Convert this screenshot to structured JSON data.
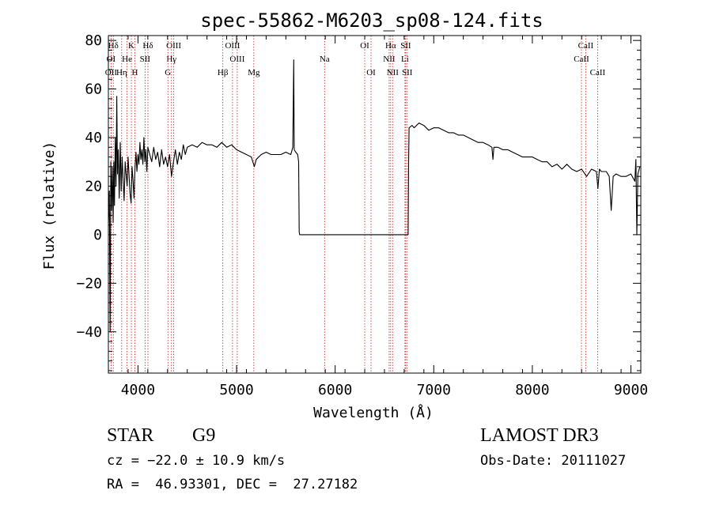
{
  "chart_data": {
    "type": "line",
    "title": "spec-55862-M6203_sp08-124.fits",
    "xlabel": "Wavelength (Å)",
    "ylabel": "Flux (relative)",
    "xlim": [
      3700,
      9100
    ],
    "ylim": [
      -57,
      82
    ],
    "x_ticks": [
      4000,
      5000,
      6000,
      7000,
      8000,
      9000
    ],
    "y_ticks": [
      -40,
      -20,
      0,
      20,
      40,
      60,
      80
    ],
    "grid": false,
    "series": [
      {
        "name": "spectrum",
        "points": [
          [
            3700,
            5
          ],
          [
            3710,
            18
          ],
          [
            3718,
            -40
          ],
          [
            3725,
            30
          ],
          [
            3732,
            10
          ],
          [
            3740,
            28
          ],
          [
            3748,
            5
          ],
          [
            3755,
            30
          ],
          [
            3762,
            12
          ],
          [
            3770,
            40
          ],
          [
            3778,
            20
          ],
          [
            3785,
            57
          ],
          [
            3792,
            25
          ],
          [
            3800,
            35
          ],
          [
            3810,
            15
          ],
          [
            3820,
            38
          ],
          [
            3830,
            18
          ],
          [
            3840,
            32
          ],
          [
            3850,
            22
          ],
          [
            3860,
            14
          ],
          [
            3870,
            30
          ],
          [
            3880,
            25
          ],
          [
            3890,
            20
          ],
          [
            3900,
            32
          ],
          [
            3910,
            24
          ],
          [
            3920,
            17
          ],
          [
            3930,
            13
          ],
          [
            3940,
            28
          ],
          [
            3950,
            22
          ],
          [
            3960,
            15
          ],
          [
            3970,
            28
          ],
          [
            3980,
            34
          ],
          [
            3990,
            26
          ],
          [
            4000,
            33
          ],
          [
            4010,
            29
          ],
          [
            4020,
            38
          ],
          [
            4030,
            31
          ],
          [
            4040,
            35
          ],
          [
            4050,
            29
          ],
          [
            4060,
            40
          ],
          [
            4070,
            30
          ],
          [
            4080,
            35
          ],
          [
            4090,
            26
          ],
          [
            4100,
            36
          ],
          [
            4120,
            33
          ],
          [
            4140,
            30
          ],
          [
            4160,
            36
          ],
          [
            4180,
            31
          ],
          [
            4200,
            34
          ],
          [
            4220,
            28
          ],
          [
            4240,
            35
          ],
          [
            4260,
            29
          ],
          [
            4280,
            32
          ],
          [
            4300,
            28
          ],
          [
            4320,
            33
          ],
          [
            4340,
            24
          ],
          [
            4360,
            30
          ],
          [
            4380,
            35
          ],
          [
            4400,
            29
          ],
          [
            4420,
            34
          ],
          [
            4440,
            31
          ],
          [
            4460,
            37
          ],
          [
            4480,
            33
          ],
          [
            4500,
            36
          ],
          [
            4550,
            37
          ],
          [
            4600,
            36
          ],
          [
            4650,
            38
          ],
          [
            4700,
            37
          ],
          [
            4750,
            37
          ],
          [
            4800,
            36
          ],
          [
            4850,
            38
          ],
          [
            4900,
            36
          ],
          [
            4950,
            37
          ],
          [
            5000,
            35
          ],
          [
            5050,
            34
          ],
          [
            5100,
            33
          ],
          [
            5150,
            32
          ],
          [
            5180,
            28
          ],
          [
            5200,
            31
          ],
          [
            5250,
            33
          ],
          [
            5300,
            34
          ],
          [
            5350,
            33
          ],
          [
            5400,
            33
          ],
          [
            5450,
            33
          ],
          [
            5500,
            34
          ],
          [
            5550,
            33
          ],
          [
            5570,
            36
          ],
          [
            5580,
            72
          ],
          [
            5585,
            35
          ],
          [
            5600,
            34
          ],
          [
            5620,
            33
          ],
          [
            5630,
            30
          ],
          [
            5635,
            1
          ],
          [
            5640,
            0
          ],
          [
            6000,
            0
          ],
          [
            6300,
            0
          ],
          [
            6500,
            0
          ],
          [
            6740,
            0
          ],
          [
            6745,
            30
          ],
          [
            6750,
            44
          ],
          [
            6780,
            45
          ],
          [
            6800,
            44
          ],
          [
            6850,
            46
          ],
          [
            6900,
            45
          ],
          [
            6950,
            43
          ],
          [
            7000,
            44
          ],
          [
            7050,
            44
          ],
          [
            7100,
            43
          ],
          [
            7150,
            42
          ],
          [
            7200,
            42
          ],
          [
            7250,
            41
          ],
          [
            7300,
            41
          ],
          [
            7350,
            40
          ],
          [
            7400,
            39
          ],
          [
            7450,
            38
          ],
          [
            7500,
            38
          ],
          [
            7550,
            37
          ],
          [
            7590,
            36
          ],
          [
            7600,
            31
          ],
          [
            7610,
            36
          ],
          [
            7650,
            36
          ],
          [
            7700,
            35
          ],
          [
            7750,
            35
          ],
          [
            7800,
            34
          ],
          [
            7850,
            33
          ],
          [
            7900,
            32
          ],
          [
            7950,
            32
          ],
          [
            8000,
            32
          ],
          [
            8050,
            31
          ],
          [
            8100,
            30
          ],
          [
            8150,
            30
          ],
          [
            8200,
            28
          ],
          [
            8250,
            29
          ],
          [
            8300,
            27
          ],
          [
            8350,
            29
          ],
          [
            8400,
            27
          ],
          [
            8450,
            26
          ],
          [
            8500,
            27
          ],
          [
            8550,
            24
          ],
          [
            8600,
            27
          ],
          [
            8650,
            26
          ],
          [
            8665,
            19
          ],
          [
            8680,
            27
          ],
          [
            8700,
            26
          ],
          [
            8750,
            26
          ],
          [
            8780,
            24
          ],
          [
            8800,
            10
          ],
          [
            8820,
            24
          ],
          [
            8850,
            25
          ],
          [
            8900,
            24
          ],
          [
            8950,
            24
          ],
          [
            9000,
            25
          ],
          [
            9040,
            22
          ],
          [
            9050,
            31
          ],
          [
            9060,
            0
          ],
          [
            9070,
            25
          ],
          [
            9090,
            28
          ]
        ]
      }
    ],
    "lines": [
      {
        "name": "Hδ",
        "x": 3750,
        "row": 1
      },
      {
        "name": "K",
        "x": 3933,
        "row": 1
      },
      {
        "name": "Hδ",
        "x": 4101,
        "row": 1
      },
      {
        "name": "OIII",
        "x": 4363,
        "row": 1
      },
      {
        "name": "OIII",
        "x": 4959,
        "row": 1
      },
      {
        "name": "OI",
        "x": 6300,
        "row": 1
      },
      {
        "name": "Hα",
        "x": 6563,
        "row": 1
      },
      {
        "name": "SII",
        "x": 6716,
        "row": 1
      },
      {
        "name": "CaII",
        "x": 8542,
        "row": 1
      },
      {
        "name": "OI",
        "x": 3727,
        "row": 2
      },
      {
        "name": "He",
        "x": 3889,
        "row": 2
      },
      {
        "name": "SII",
        "x": 4072,
        "row": 2
      },
      {
        "name": "Hγ",
        "x": 4340,
        "row": 2
      },
      {
        "name": "OIII",
        "x": 5007,
        "row": 2
      },
      {
        "name": "Na",
        "x": 5893,
        "row": 2
      },
      {
        "name": "NII",
        "x": 6548,
        "row": 2
      },
      {
        "name": "Li",
        "x": 6708,
        "row": 2
      },
      {
        "name": "CaII",
        "x": 8498,
        "row": 2
      },
      {
        "name": "OII",
        "x": 3727,
        "row": 3
      },
      {
        "name": "Hη",
        "x": 3835,
        "row": 3
      },
      {
        "name": "H",
        "x": 3969,
        "row": 3
      },
      {
        "name": "G",
        "x": 4304,
        "row": 3
      },
      {
        "name": "Hβ",
        "x": 4861,
        "row": 3
      },
      {
        "name": "Mg",
        "x": 5175,
        "row": 3
      },
      {
        "name": "OI",
        "x": 6364,
        "row": 3
      },
      {
        "name": "NII",
        "x": 6583,
        "row": 3
      },
      {
        "name": "SII",
        "x": 6731,
        "row": 3
      },
      {
        "name": "CaII",
        "x": 8662,
        "row": 3
      }
    ]
  },
  "info": {
    "class": "STAR",
    "subclass": "G9",
    "survey": "LAMOST DR3",
    "cz": "cz = −22.0 ± 10.9 km/s",
    "obs_date": "Obs-Date: 20111027",
    "radec": "RA =  46.93301, DEC =  27.27182"
  },
  "colors": {
    "line_marker": "#c02020",
    "spectrum": "#000000",
    "axes": "#000000"
  }
}
